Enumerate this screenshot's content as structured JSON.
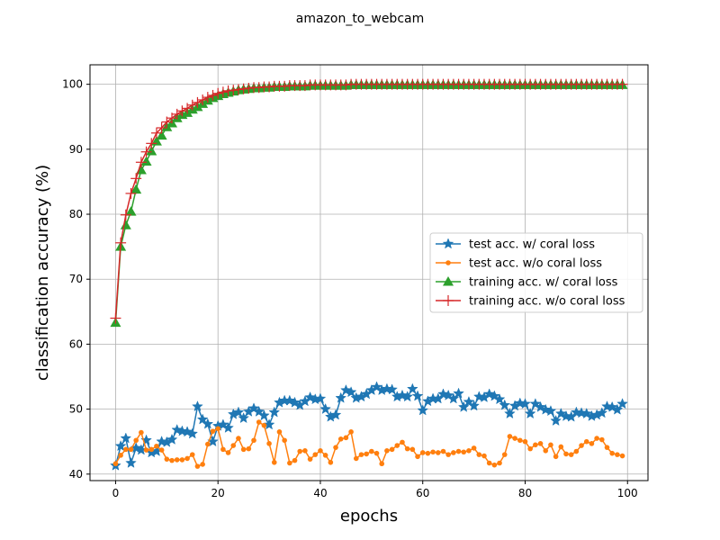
{
  "chart_data": {
    "type": "line",
    "title": "amazon_to_webcam",
    "xlabel": "epochs",
    "ylabel": "classification accuracy (%)",
    "xlim": [
      -5,
      104
    ],
    "ylim": [
      39,
      103
    ],
    "xticks": [
      0,
      20,
      40,
      60,
      80,
      100
    ],
    "yticks": [
      40,
      50,
      60,
      70,
      80,
      90,
      100
    ],
    "grid": true,
    "legend_position": "center-right",
    "series": [
      {
        "name": "test acc. w/ coral loss",
        "color": "#1f77b4",
        "marker": "star",
        "values": [
          41.3,
          44.3,
          45.5,
          41.7,
          44.0,
          43.7,
          45.2,
          43.3,
          43.5,
          45.0,
          44.9,
          45.3,
          46.8,
          46.6,
          46.5,
          46.2,
          50.4,
          48.4,
          47.7,
          45.0,
          47.4,
          47.6,
          47.1,
          49.2,
          49.5,
          48.6,
          49.6,
          50.1,
          49.6,
          49.0,
          47.6,
          49.5,
          51.0,
          51.3,
          51.3,
          51.0,
          50.6,
          51.2,
          51.8,
          51.5,
          51.6,
          50.0,
          48.8,
          49.1,
          51.7,
          52.9,
          52.6,
          51.7,
          51.9,
          52.3,
          52.9,
          53.4,
          52.9,
          53.1,
          53.0,
          51.9,
          52.1,
          51.9,
          53.1,
          52.0,
          49.8,
          51.2,
          51.6,
          51.6,
          52.3,
          52.1,
          51.6,
          52.4,
          50.3,
          51.1,
          50.5,
          51.9,
          51.8,
          52.3,
          52.0,
          51.5,
          50.6,
          49.3,
          50.5,
          50.9,
          50.8,
          49.3,
          50.8,
          50.3,
          49.9,
          49.7,
          48.2,
          49.3,
          48.9,
          48.8,
          49.5,
          49.4,
          49.3,
          48.9,
          49.1,
          49.4,
          50.4,
          50.3,
          49.9,
          50.8
        ]
      },
      {
        "name": "test acc. w/o coral loss",
        "color": "#ff7f0e",
        "marker": "circle",
        "values": [
          41.6,
          42.9,
          43.8,
          43.8,
          45.2,
          46.4,
          43.7,
          43.8,
          44.3,
          43.7,
          42.3,
          42.1,
          42.2,
          42.2,
          42.4,
          43.0,
          41.2,
          41.5,
          44.6,
          46.6,
          47.0,
          43.8,
          43.3,
          44.4,
          45.5,
          43.8,
          43.9,
          45.2,
          48.0,
          47.5,
          44.7,
          41.8,
          46.5,
          45.2,
          41.7,
          42.1,
          43.5,
          43.6,
          42.3,
          43.0,
          43.6,
          42.9,
          41.8,
          44.1,
          45.4,
          45.6,
          46.5,
          42.4,
          43.0,
          43.1,
          43.5,
          43.2,
          41.6,
          43.6,
          43.8,
          44.4,
          44.9,
          43.9,
          43.8,
          42.7,
          43.3,
          43.2,
          43.4,
          43.3,
          43.5,
          43.0,
          43.3,
          43.5,
          43.4,
          43.6,
          44.0,
          43.0,
          42.8,
          41.7,
          41.4,
          41.7,
          43.0,
          45.8,
          45.5,
          45.2,
          45.0,
          43.9,
          44.5,
          44.7,
          43.6,
          44.5,
          42.7,
          44.2,
          43.1,
          43.0,
          43.5,
          44.4,
          45.0,
          44.7,
          45.5,
          45.3,
          44.1,
          43.2,
          43.0,
          42.8
        ]
      },
      {
        "name": "training acc. w/ coral loss",
        "color": "#2ca02c",
        "marker": "triangle",
        "values": [
          63.3,
          75.0,
          78.3,
          80.4,
          83.8,
          86.8,
          88.1,
          89.7,
          91.2,
          92.1,
          93.4,
          94.0,
          94.8,
          95.3,
          95.6,
          96.1,
          96.5,
          97.0,
          97.5,
          97.9,
          98.2,
          98.5,
          98.7,
          98.9,
          99.1,
          99.2,
          99.3,
          99.4,
          99.4,
          99.5,
          99.5,
          99.6,
          99.6,
          99.6,
          99.7,
          99.7,
          99.7,
          99.7,
          99.8,
          99.8,
          99.8,
          99.8,
          99.8,
          99.8,
          99.8,
          99.8,
          99.9,
          99.9,
          99.9,
          99.9,
          99.9,
          99.9,
          99.9,
          99.9,
          99.9,
          99.9,
          99.9,
          99.9,
          99.9,
          99.9,
          99.9,
          99.9,
          99.9,
          99.9,
          99.9,
          99.9,
          99.9,
          99.9,
          99.9,
          99.9,
          99.9,
          99.9,
          99.9,
          99.9,
          99.9,
          99.9,
          99.9,
          99.9,
          99.9,
          99.9,
          99.9,
          99.9,
          99.9,
          99.9,
          99.9,
          99.9,
          99.9,
          99.9,
          99.9,
          99.9,
          99.9,
          99.9,
          99.9,
          99.9,
          99.9,
          99.9,
          99.9,
          99.9,
          99.9,
          99.9
        ]
      },
      {
        "name": "training acc. w/o coral loss",
        "color": "#d62728",
        "marker": "plus",
        "values": [
          64.0,
          75.6,
          79.9,
          83.2,
          85.5,
          88.0,
          89.6,
          90.9,
          92.5,
          93.3,
          94.2,
          94.8,
          95.4,
          95.9,
          96.3,
          96.8,
          97.2,
          97.6,
          98.0,
          98.3,
          98.6,
          98.8,
          99.0,
          99.1,
          99.2,
          99.3,
          99.4,
          99.5,
          99.5,
          99.6,
          99.6,
          99.7,
          99.7,
          99.7,
          99.8,
          99.8,
          99.8,
          99.8,
          99.9,
          99.9,
          99.9,
          99.9,
          99.9,
          99.9,
          99.9,
          99.9,
          100.0,
          100.0,
          100.0,
          100.0,
          100.0,
          100.0,
          100.0,
          100.0,
          100.0,
          100.0,
          100.0,
          100.0,
          100.0,
          100.0,
          100.0,
          100.0,
          100.0,
          100.0,
          100.0,
          100.0,
          100.0,
          100.0,
          100.0,
          100.0,
          100.0,
          100.0,
          100.0,
          100.0,
          100.0,
          100.0,
          100.0,
          100.0,
          100.0,
          100.0,
          100.0,
          100.0,
          100.0,
          100.0,
          100.0,
          100.0,
          100.0,
          100.0,
          100.0,
          100.0,
          100.0,
          100.0,
          100.0,
          100.0,
          100.0,
          100.0,
          100.0,
          100.0,
          100.0,
          100.0
        ]
      }
    ]
  }
}
